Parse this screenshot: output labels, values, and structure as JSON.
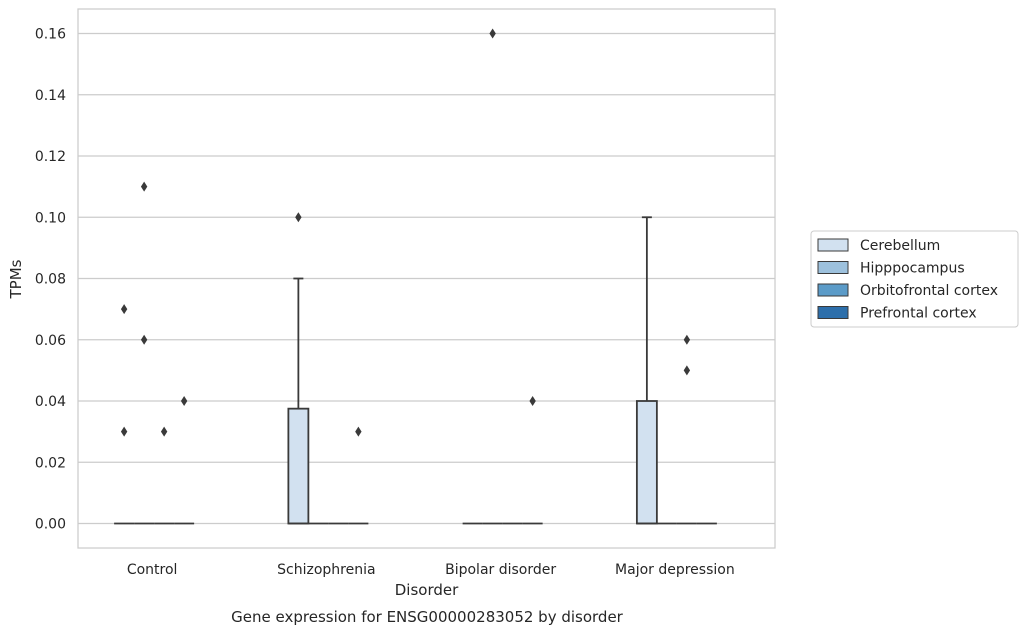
{
  "chart_data": {
    "type": "box",
    "caption": "Gene expression for ENSG00000283052 by disorder",
    "xlabel": "Disorder",
    "ylabel": "TPMs",
    "categories": [
      "Control",
      "Schizophrenia",
      "Bipolar disorder",
      "Major depression"
    ],
    "ylim": [
      -0.008,
      0.168
    ],
    "yticks": [
      "0.00",
      "0.02",
      "0.04",
      "0.06",
      "0.08",
      "0.10",
      "0.12",
      "0.14",
      "0.16"
    ],
    "grid": "horizontal",
    "legend_position": "right",
    "series": [
      {
        "name": "Cerebellum",
        "color": "#d2e1f0",
        "boxes": [
          {
            "q1": 0,
            "median": 0,
            "q3": 0,
            "whisker_low": 0,
            "whisker_high": 0,
            "outliers": [
              0.03,
              0.07
            ]
          },
          {
            "q1": 0,
            "median": 0,
            "q3": 0.0375,
            "whisker_low": 0,
            "whisker_high": 0.08,
            "outliers": [
              0.1
            ]
          },
          {
            "q1": 0,
            "median": 0,
            "q3": 0,
            "whisker_low": 0,
            "whisker_high": 0,
            "outliers": []
          },
          {
            "q1": 0,
            "median": 0,
            "q3": 0.04,
            "whisker_low": 0,
            "whisker_high": 0.1,
            "outliers": []
          }
        ]
      },
      {
        "name": "Hipppocampus",
        "color": "#9dc1dd",
        "boxes": [
          {
            "q1": 0,
            "median": 0,
            "q3": 0,
            "whisker_low": 0,
            "whisker_high": 0,
            "outliers": [
              0.06,
              0.11
            ]
          },
          {
            "q1": 0,
            "median": 0,
            "q3": 0,
            "whisker_low": 0,
            "whisker_high": 0,
            "outliers": []
          },
          {
            "q1": 0,
            "median": 0,
            "q3": 0,
            "whisker_low": 0,
            "whisker_high": 0,
            "outliers": [
              0.16
            ]
          },
          {
            "q1": 0,
            "median": 0,
            "q3": 0,
            "whisker_low": 0,
            "whisker_high": 0,
            "outliers": []
          }
        ]
      },
      {
        "name": "Orbitofrontal cortex",
        "color": "#5b9bc8",
        "boxes": [
          {
            "q1": 0,
            "median": 0,
            "q3": 0,
            "whisker_low": 0,
            "whisker_high": 0,
            "outliers": [
              0.03
            ]
          },
          {
            "q1": 0,
            "median": 0,
            "q3": 0,
            "whisker_low": 0,
            "whisker_high": 0,
            "outliers": []
          },
          {
            "q1": 0,
            "median": 0,
            "q3": 0,
            "whisker_low": 0,
            "whisker_high": 0,
            "outliers": []
          },
          {
            "q1": 0,
            "median": 0,
            "q3": 0,
            "whisker_low": 0,
            "whisker_high": 0,
            "outliers": [
              0.05,
              0.06
            ]
          }
        ]
      },
      {
        "name": "Prefrontal cortex",
        "color": "#2d6fab",
        "boxes": [
          {
            "q1": 0,
            "median": 0,
            "q3": 0,
            "whisker_low": 0,
            "whisker_high": 0,
            "outliers": [
              0.04
            ]
          },
          {
            "q1": 0,
            "median": 0,
            "q3": 0,
            "whisker_low": 0,
            "whisker_high": 0,
            "outliers": [
              0.03
            ]
          },
          {
            "q1": 0,
            "median": 0,
            "q3": 0,
            "whisker_low": 0,
            "whisker_high": 0,
            "outliers": [
              0.04
            ]
          },
          {
            "q1": 0,
            "median": 0,
            "q3": 0,
            "whisker_low": 0,
            "whisker_high": 0,
            "outliers": []
          }
        ]
      }
    ]
  }
}
